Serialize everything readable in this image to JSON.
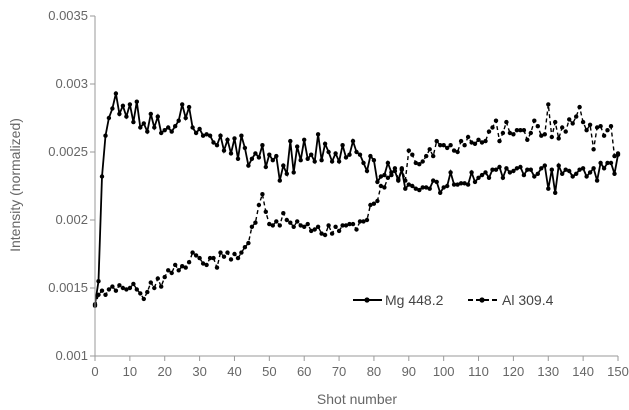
{
  "chart_data": {
    "type": "line",
    "title": "",
    "xlabel": "Shot number",
    "ylabel": "Intensity (normalized)",
    "xlim": [
      0,
      150
    ],
    "ylim": [
      0.001,
      0.0035
    ],
    "x_ticks": [
      0,
      10,
      20,
      30,
      40,
      50,
      60,
      70,
      80,
      90,
      100,
      110,
      120,
      130,
      140,
      150
    ],
    "y_ticks": [
      "0.001",
      "0.0015",
      "0.002",
      "0.0025",
      "0.003",
      "0.0035"
    ],
    "grid": false,
    "legend_position": "bottom-right",
    "series": [
      {
        "name": "Mg 448.2",
        "style": "solid",
        "color": "#000000",
        "x": [
          0,
          1,
          2,
          3,
          4,
          5,
          6,
          7,
          8,
          9,
          10,
          11,
          12,
          13,
          14,
          15,
          16,
          17,
          18,
          19,
          20,
          21,
          22,
          23,
          24,
          25,
          26,
          27,
          28,
          29,
          30,
          31,
          32,
          33,
          34,
          35,
          36,
          37,
          38,
          39,
          40,
          41,
          42,
          43,
          44,
          45,
          46,
          47,
          48,
          49,
          50,
          51,
          52,
          53,
          54,
          55,
          56,
          57,
          58,
          59,
          60,
          61,
          62,
          63,
          64,
          65,
          66,
          67,
          68,
          69,
          70,
          71,
          72,
          73,
          74,
          75,
          76,
          77,
          78,
          79,
          80,
          81,
          82,
          83,
          84,
          85,
          86,
          87,
          88,
          89,
          90,
          91,
          92,
          93,
          94,
          95,
          96,
          97,
          98,
          99,
          100,
          101,
          102,
          103,
          104,
          105,
          106,
          107,
          108,
          109,
          110,
          111,
          112,
          113,
          114,
          115,
          116,
          117,
          118,
          119,
          120,
          121,
          122,
          123,
          124,
          125,
          126,
          127,
          128,
          129,
          130,
          131,
          132,
          133,
          134,
          135,
          136,
          137,
          138,
          139,
          140,
          141,
          142,
          143,
          144,
          145,
          146,
          147,
          148,
          149,
          150
        ],
        "y": [
          0.00138,
          0.00155,
          0.00232,
          0.00262,
          0.00275,
          0.00282,
          0.00293,
          0.00278,
          0.00284,
          0.00276,
          0.00285,
          0.00272,
          0.00287,
          0.00268,
          0.00271,
          0.00265,
          0.00278,
          0.00268,
          0.00276,
          0.00264,
          0.00266,
          0.00268,
          0.00265,
          0.00269,
          0.00273,
          0.00285,
          0.00275,
          0.00283,
          0.00268,
          0.00264,
          0.00267,
          0.00262,
          0.00263,
          0.00262,
          0.00257,
          0.00255,
          0.00262,
          0.00251,
          0.00259,
          0.00249,
          0.0026,
          0.00245,
          0.00262,
          0.00253,
          0.0024,
          0.00245,
          0.00249,
          0.00246,
          0.00255,
          0.00239,
          0.00248,
          0.00244,
          0.00247,
          0.00229,
          0.0024,
          0.00234,
          0.00258,
          0.00235,
          0.00254,
          0.00244,
          0.00259,
          0.00245,
          0.00248,
          0.00243,
          0.00263,
          0.00244,
          0.00256,
          0.0025,
          0.00243,
          0.00249,
          0.00243,
          0.00255,
          0.00246,
          0.00248,
          0.00258,
          0.0025,
          0.00248,
          0.00242,
          0.00236,
          0.00247,
          0.00244,
          0.00228,
          0.00232,
          0.00233,
          0.00242,
          0.00235,
          0.00236,
          0.00229,
          0.00237,
          0.00223,
          0.00226,
          0.00225,
          0.00223,
          0.00222,
          0.00224,
          0.00224,
          0.00223,
          0.00229,
          0.00228,
          0.0022,
          0.00224,
          0.00225,
          0.00235,
          0.00226,
          0.00226,
          0.00227,
          0.00227,
          0.00226,
          0.00235,
          0.00228,
          0.00231,
          0.00233,
          0.00235,
          0.00231,
          0.00237,
          0.00237,
          0.00239,
          0.00231,
          0.00238,
          0.00235,
          0.00236,
          0.00238,
          0.00239,
          0.00233,
          0.00237,
          0.00237,
          0.00232,
          0.00234,
          0.00238,
          0.0024,
          0.00223,
          0.00237,
          0.0022,
          0.0024,
          0.00234,
          0.00237,
          0.00236,
          0.00232,
          0.00234,
          0.00237,
          0.00238,
          0.00232,
          0.00235,
          0.00238,
          0.00229,
          0.00242,
          0.00238,
          0.00242,
          0.00242,
          0.00234,
          0.00248
        ]
      },
      {
        "name": "Al 309.4",
        "style": "dashed",
        "color": "#000000",
        "x": [
          0,
          1,
          2,
          3,
          4,
          5,
          6,
          7,
          8,
          9,
          10,
          11,
          12,
          13,
          14,
          15,
          16,
          17,
          18,
          19,
          20,
          21,
          22,
          23,
          24,
          25,
          26,
          27,
          28,
          29,
          30,
          31,
          32,
          33,
          34,
          35,
          36,
          37,
          38,
          39,
          40,
          41,
          42,
          43,
          44,
          45,
          46,
          47,
          48,
          49,
          50,
          51,
          52,
          53,
          54,
          55,
          56,
          57,
          58,
          59,
          60,
          61,
          62,
          63,
          64,
          65,
          66,
          67,
          68,
          69,
          70,
          71,
          72,
          73,
          74,
          75,
          76,
          77,
          78,
          79,
          80,
          81,
          82,
          83,
          84,
          85,
          86,
          87,
          88,
          89,
          90,
          91,
          92,
          93,
          94,
          95,
          96,
          97,
          98,
          99,
          100,
          101,
          102,
          103,
          104,
          105,
          106,
          107,
          108,
          109,
          110,
          111,
          112,
          113,
          114,
          115,
          116,
          117,
          118,
          119,
          120,
          121,
          122,
          123,
          124,
          125,
          126,
          127,
          128,
          129,
          130,
          131,
          132,
          133,
          134,
          135,
          136,
          137,
          138,
          139,
          140,
          141,
          142,
          143,
          144,
          145,
          146,
          147,
          148,
          149,
          150
        ],
        "y": [
          0.00137,
          0.00145,
          0.00148,
          0.00145,
          0.00149,
          0.00151,
          0.00148,
          0.00152,
          0.0015,
          0.00149,
          0.0015,
          0.00153,
          0.00149,
          0.00146,
          0.00142,
          0.00147,
          0.00154,
          0.0015,
          0.00157,
          0.00151,
          0.00158,
          0.00163,
          0.00161,
          0.00167,
          0.00163,
          0.00166,
          0.00165,
          0.00169,
          0.00176,
          0.00174,
          0.00172,
          0.00168,
          0.00167,
          0.00172,
          0.00172,
          0.00165,
          0.00176,
          0.00173,
          0.00176,
          0.00171,
          0.00175,
          0.00172,
          0.00176,
          0.0018,
          0.00183,
          0.00195,
          0.00198,
          0.00211,
          0.00219,
          0.00206,
          0.00197,
          0.00196,
          0.00199,
          0.00196,
          0.00205,
          0.002,
          0.00198,
          0.00195,
          0.00199,
          0.00196,
          0.00195,
          0.00197,
          0.00192,
          0.00193,
          0.00195,
          0.0019,
          0.00189,
          0.00196,
          0.0019,
          0.00195,
          0.00192,
          0.00196,
          0.00196,
          0.00197,
          0.00197,
          0.00193,
          0.00199,
          0.00199,
          0.002,
          0.00211,
          0.00212,
          0.00214,
          0.00225,
          0.00224,
          0.00231,
          0.00233,
          0.00238,
          0.0023,
          0.00238,
          0.00229,
          0.00251,
          0.00248,
          0.00242,
          0.00241,
          0.00243,
          0.00247,
          0.00252,
          0.00247,
          0.00258,
          0.00255,
          0.00255,
          0.00253,
          0.00255,
          0.00251,
          0.0025,
          0.00258,
          0.00255,
          0.00261,
          0.00257,
          0.00256,
          0.00259,
          0.00257,
          0.00258,
          0.00265,
          0.00268,
          0.00273,
          0.00258,
          0.00264,
          0.00272,
          0.00264,
          0.00263,
          0.00266,
          0.00266,
          0.00266,
          0.00259,
          0.00264,
          0.00273,
          0.00269,
          0.00262,
          0.00263,
          0.00285,
          0.00261,
          0.00272,
          0.0026,
          0.00268,
          0.00265,
          0.00274,
          0.00271,
          0.00276,
          0.00283,
          0.00272,
          0.00266,
          0.0027,
          0.00252,
          0.00268,
          0.00269,
          0.00262,
          0.00266,
          0.00269,
          0.00247,
          0.00249
        ]
      }
    ]
  }
}
